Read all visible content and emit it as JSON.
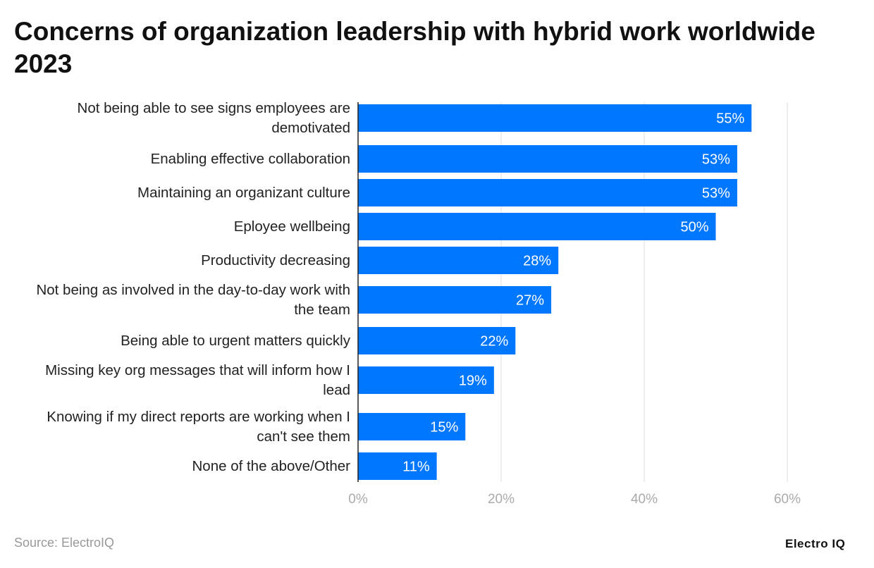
{
  "chart_data": {
    "type": "bar",
    "orientation": "horizontal",
    "title": "Concerns of organization leadership with hybrid work worldwide 2023",
    "categories": [
      "Not being able to see signs employees are demotivated",
      "Enabling effective collaboration",
      "Maintaining an organizant culture",
      "Eployee wellbeing",
      "Productivity decreasing",
      "Not being as involved in the day-to-day work with the team",
      "Being able to urgent matters quickly",
      "Missing key org messages that will inform how I lead",
      "Knowing if my direct reports are working when I can't see them",
      "None of the above/Other"
    ],
    "values": [
      55,
      53,
      53,
      50,
      28,
      27,
      22,
      19,
      15,
      11
    ],
    "data_labels": [
      "55%",
      "53%",
      "53%",
      "50%",
      "28%",
      "27%",
      "22%",
      "19%",
      "15%",
      "11%"
    ],
    "xlim": [
      0,
      60
    ],
    "x_ticks": [
      "0%",
      "20%",
      "40%",
      "60%"
    ],
    "xlabel": "",
    "ylabel": "",
    "grid": "vertical",
    "bar_color": "#0077FF"
  },
  "source": "Source: ElectroIQ",
  "logo": "Electro IQ"
}
